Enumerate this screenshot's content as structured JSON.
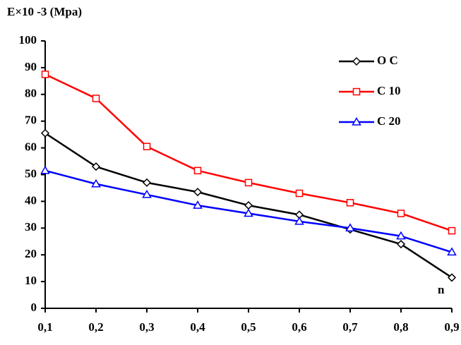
{
  "chart_data": {
    "type": "line",
    "y_label": "E×10 -3 (Mpa)",
    "x_annotation": "n",
    "x": [
      0.1,
      0.2,
      0.3,
      0.4,
      0.5,
      0.6,
      0.7,
      0.8,
      0.9
    ],
    "xlim": [
      0.1,
      0.9
    ],
    "xticks": [
      {
        "value": 0.1,
        "label": "0,1"
      },
      {
        "value": 0.2,
        "label": "0,2"
      },
      {
        "value": 0.3,
        "label": "0,3"
      },
      {
        "value": 0.4,
        "label": "0,4"
      },
      {
        "value": 0.5,
        "label": "0,5"
      },
      {
        "value": 0.6,
        "label": "0,6"
      },
      {
        "value": 0.7,
        "label": "0,7"
      },
      {
        "value": 0.8,
        "label": "0,8"
      },
      {
        "value": 0.9,
        "label": "0,9"
      }
    ],
    "ylim": [
      0,
      100
    ],
    "yticks": [
      0,
      10,
      20,
      30,
      40,
      50,
      60,
      70,
      80,
      90,
      100
    ],
    "grid": false,
    "legend": "upper right",
    "series": [
      {
        "name": "O C",
        "color": "#000000",
        "marker": "diamond",
        "values": [
          65.5,
          53,
          47,
          43.5,
          38.5,
          35,
          29.5,
          24,
          11.5
        ]
      },
      {
        "name": "C 10",
        "color": "#ff0000",
        "marker": "square",
        "values": [
          87.5,
          78.5,
          60.5,
          51.5,
          47,
          43,
          39.5,
          35.5,
          29
        ]
      },
      {
        "name": "C 20",
        "color": "#0000ff",
        "marker": "triangle",
        "values": [
          51.5,
          46.5,
          42.5,
          38.5,
          35.5,
          32.5,
          30,
          27,
          21
        ]
      }
    ]
  }
}
